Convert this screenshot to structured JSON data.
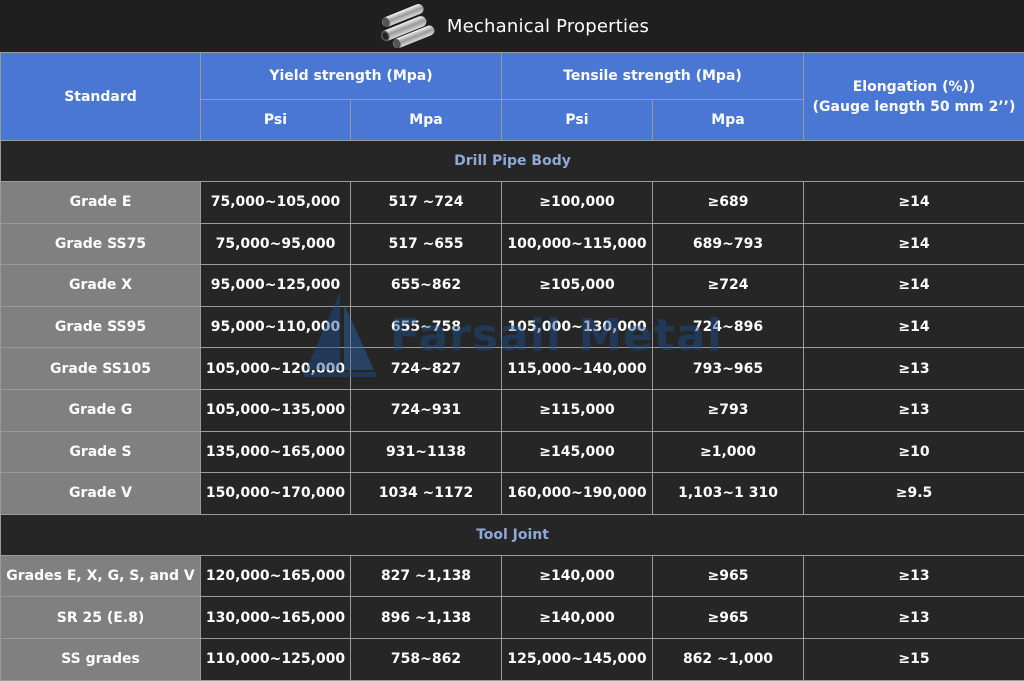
{
  "title": "Mechanical Properties",
  "header": {
    "standard": "Standard",
    "yield": "Yield strength (Mpa)",
    "tensile": "Tensile strength (Mpa)",
    "elongation_1": "Elongation (%))",
    "elongation_2": "(Gauge length 50 mm 2’’)",
    "psi": "Psi",
    "mpa": "Mpa"
  },
  "sections": [
    {
      "title": "Drill Pipe Body",
      "rows": [
        [
          "Grade E",
          "75,000~105,000",
          "517 ~724",
          "≥100,000",
          "≥689",
          "≥14"
        ],
        [
          "Grade SS75",
          "75,000~95,000",
          "517 ~655",
          "100,000~115,000",
          "689~793",
          "≥14"
        ],
        [
          "Grade X",
          "95,000~125,000",
          "655~862",
          "≥105,000",
          "≥724",
          "≥14"
        ],
        [
          "Grade SS95",
          "95,000~110,000",
          "655~758",
          "105,000~130,000",
          "724~896",
          "≥14"
        ],
        [
          "Grade SS105",
          "105,000~120,000",
          "724~827",
          "115,000~140,000",
          "793~965",
          "≥13"
        ],
        [
          "Grade G",
          "105,000~135,000",
          "724~931",
          "≥115,000",
          "≥793",
          "≥13"
        ],
        [
          "Grade S",
          "135,000~165,000",
          "931~1138",
          "≥145,000",
          "≥1,000",
          "≥10"
        ],
        [
          "Grade V",
          "150,000~170,000",
          "1034 ~1172",
          "160,000~190,000",
          "1,103~1 310",
          "≥9.5"
        ]
      ]
    },
    {
      "title": "Tool Joint",
      "rows": [
        [
          "Grades E, X, G, S, and V",
          "120,000~165,000",
          "827 ~1,138",
          "≥140,000",
          "≥965",
          "≥13"
        ],
        [
          "SR 25 (E.8)",
          "130,000~165,000",
          "896 ~1,138",
          "≥140,000",
          "≥965",
          "≥13"
        ],
        [
          "SS grades",
          "110,000~125,000",
          "758~862",
          "125,000~145,000",
          "862 ~1,000",
          "≥15"
        ]
      ]
    }
  ],
  "watermark": "Farsail Metal",
  "icons": {
    "title_icon": "pipes-icon",
    "watermark_icon": "sail-logo-icon"
  }
}
